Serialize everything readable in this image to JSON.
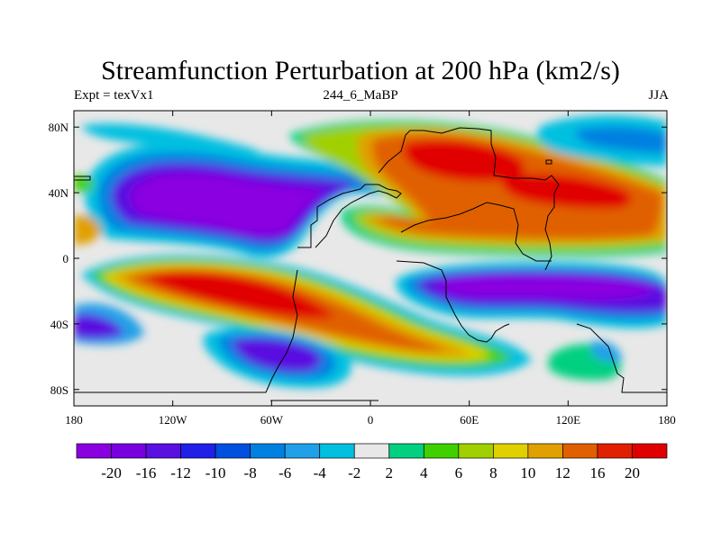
{
  "title": "Streamfunction Perturbation at 200 hPa (km2/s)",
  "subtitle_left": "Expt = texVx1",
  "subtitle_center": "244_6_MaBP",
  "subtitle_right": "JJA",
  "map": {
    "projection": "cylindrical-equidistant",
    "lon_range": [
      -180,
      180
    ],
    "lat_range": [
      -90,
      90
    ],
    "lon_ticks": [
      "180",
      "120W",
      "60W",
      "0",
      "60E",
      "120E",
      "180"
    ],
    "lat_ticks": [
      "80N",
      "40N",
      "0",
      "40S",
      "80S"
    ],
    "coastlines": "coarse-resolution continent outlines"
  },
  "colorbar": {
    "labels": [
      "-20",
      "-16",
      "-12",
      "-10",
      "-8",
      "-6",
      "-4",
      "-2",
      "2",
      "4",
      "6",
      "8",
      "10",
      "12",
      "16",
      "20"
    ],
    "colors": [
      "#8a00e0",
      "#7800e0",
      "#5a10e0",
      "#2020e8",
      "#0050e0",
      "#0080e0",
      "#20a0e8",
      "#00c0e0",
      "#e8e8e8",
      "#00d080",
      "#40d000",
      "#a0d000",
      "#e0d000",
      "#e0a000",
      "#e06000",
      "#e02000",
      "#e00000"
    ]
  }
}
